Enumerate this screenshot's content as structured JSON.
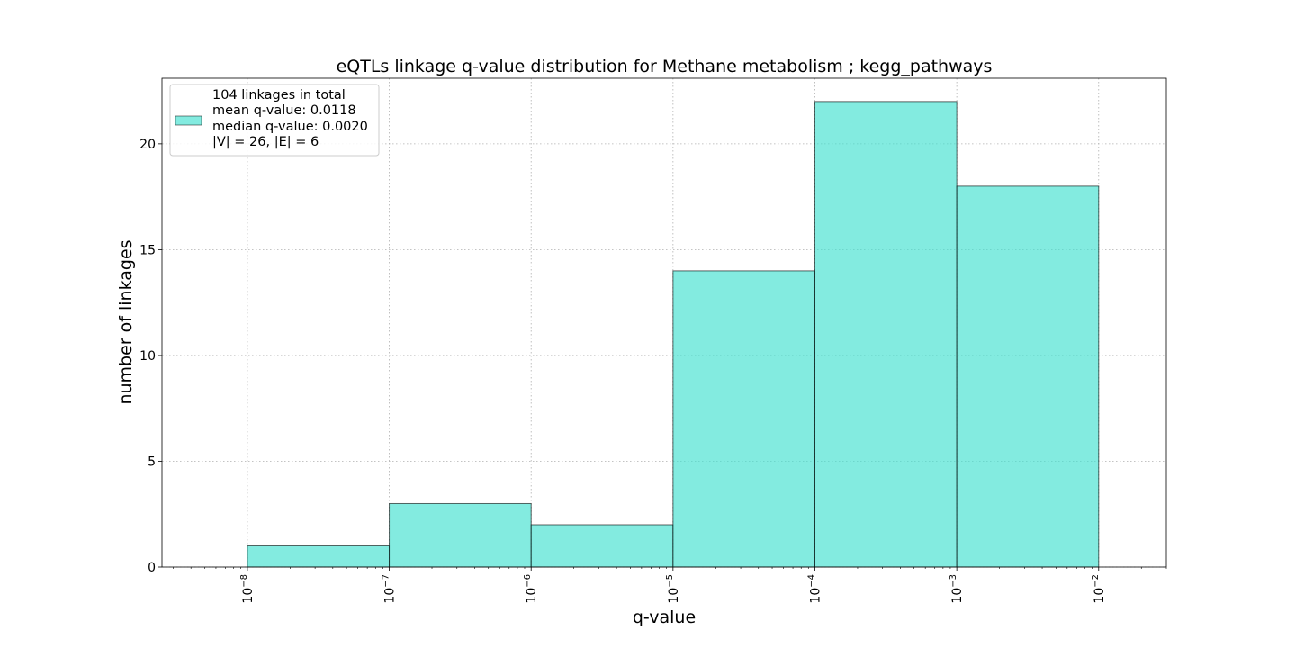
{
  "chart_data": {
    "type": "bar",
    "title": "eQTLs linkage q-value distribution for Methane metabolism ; kegg_pathways",
    "xlabel": "q-value",
    "ylabel": "number of linkages",
    "x_scale": "log",
    "xlim": [
      2.5e-09,
      0.03
    ],
    "ylim": [
      0,
      23.1
    ],
    "grid": true,
    "legend_position": "top-left",
    "bar_color": "#40E0D0",
    "bar_edge_color": "#000000",
    "bins": [
      {
        "lo": 1e-08,
        "hi": 1e-07,
        "value": 1
      },
      {
        "lo": 1e-07,
        "hi": 1e-06,
        "value": 3
      },
      {
        "lo": 1e-06,
        "hi": 1e-05,
        "value": 2
      },
      {
        "lo": 1e-05,
        "hi": 0.0001,
        "value": 14
      },
      {
        "lo": 0.0001,
        "hi": 0.001,
        "value": 22
      },
      {
        "lo": 0.001,
        "hi": 0.01,
        "value": 18
      }
    ],
    "x_ticks": [
      {
        "exp": -8,
        "value": 1e-08
      },
      {
        "exp": -7,
        "value": 1e-07
      },
      {
        "exp": -6,
        "value": 1e-06
      },
      {
        "exp": -5,
        "value": 1e-05
      },
      {
        "exp": -4,
        "value": 0.0001
      },
      {
        "exp": -3,
        "value": 0.001
      },
      {
        "exp": -2,
        "value": 0.01
      }
    ],
    "tick_base": "10",
    "y_ticks": [
      0,
      5,
      10,
      15,
      20
    ],
    "legend_lines": [
      "104 linkages in total",
      "mean q-value: 0.0118",
      "median q-value: 0.0020",
      "|V| = 26, |E| = 6"
    ]
  }
}
